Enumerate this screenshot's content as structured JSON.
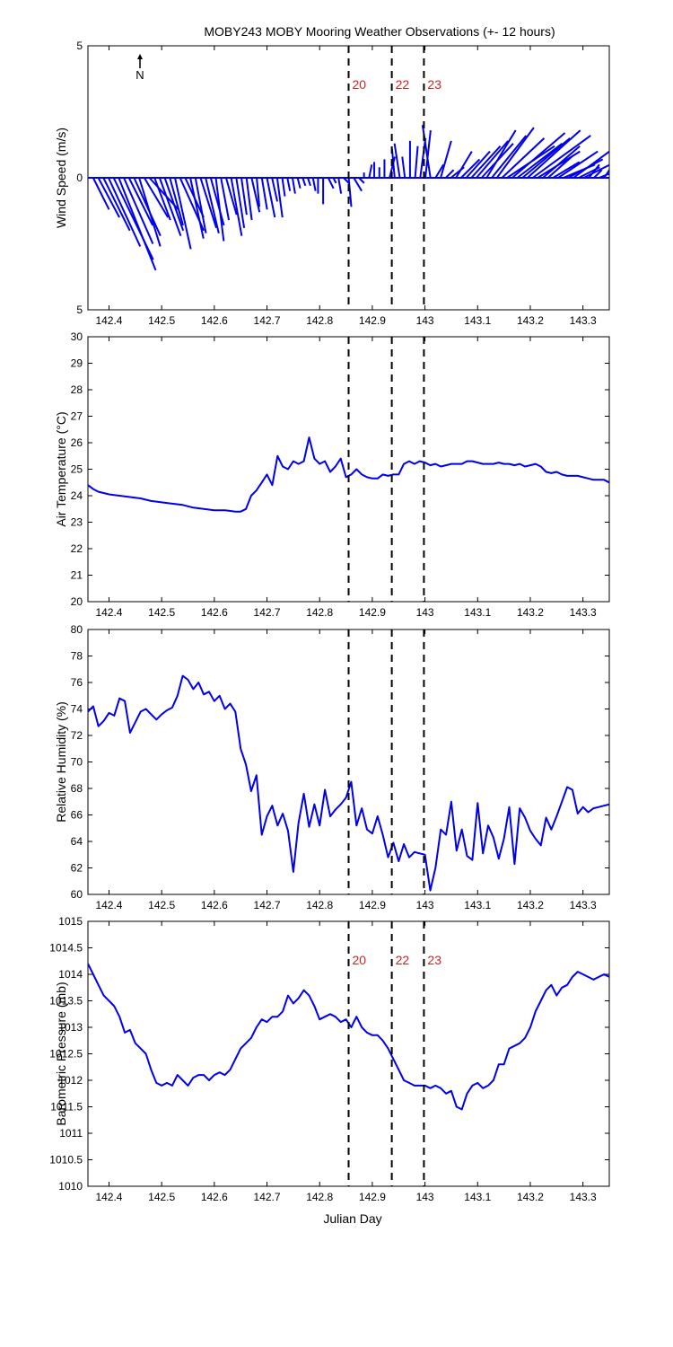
{
  "title": "MOBY243 MOBY Mooring Weather Observations (+- 12 hours)",
  "xlabel": "Julian Day",
  "north_label": "N",
  "colors": {
    "series": "#0000ee",
    "marker_text": "#cc2222",
    "axes": "#000000"
  },
  "markers": [
    {
      "label": "20",
      "x": 142.855
    },
    {
      "label": "22",
      "x": 142.937
    },
    {
      "label": "23",
      "x": 142.998
    }
  ],
  "chart_data": [
    {
      "type": "wind_stick",
      "ylabel": "Wind Speed (m/s)",
      "xlim": [
        142.36,
        143.35
      ],
      "ylim": [
        -5,
        5
      ],
      "yticks": [
        -5,
        0,
        5
      ],
      "ytick_labels": [
        "5",
        "0",
        "5"
      ],
      "xticks": [
        "142.4",
        "142.5",
        "142.6",
        "142.7",
        "142.8",
        "142.9",
        "143",
        "143.1",
        "143.2",
        "143.3"
      ],
      "show_markers": true,
      "show_marker_labels": true,
      "u": [
        0.6,
        0.8,
        1.0,
        1.2,
        1.5,
        1.4,
        1.1,
        0.9,
        1.0,
        0.8,
        0.9,
        1.1,
        0.6,
        0.8,
        0.7,
        0.5,
        0.6,
        0.9,
        0.7,
        0.5,
        0.4,
        0.6,
        0.5,
        0.5,
        0.3,
        0.3,
        0.4,
        0.4,
        0.3,
        0.2,
        0.2,
        0.3,
        0.1,
        0.2,
        0.3,
        0.2,
        0.2,
        0.1,
        0.1,
        0.1,
        0.1,
        0.1,
        0.1,
        0.1,
        0.0,
        0.0,
        0.2,
        0.1,
        0.1,
        0.2,
        0.1,
        0.3,
        0.2,
        0.0,
        0.1,
        0.0,
        0.0,
        0.0,
        0.2,
        -0.1,
        -0.2,
        -0.1,
        0.0,
        0.1,
        0.2,
        0.2,
        -0.3,
        0.3,
        0.4,
        0.3,
        0.5,
        0.6,
        0.7,
        0.9,
        1.1,
        1.2,
        1.2,
        1.1,
        1.3,
        1.4,
        1.6,
        1.8,
        2.0,
        1.7,
        1.8,
        2.0,
        2.2,
        1.6,
        1.4,
        0.9,
        1.0,
        1.5,
        1.2,
        1.3,
        1.5,
        0.8,
        1.2,
        0.4,
        0.3,
        0.5,
        0.2
      ],
      "v": [
        -1.2,
        -1.5,
        -2.0,
        -2.6,
        -3.1,
        -3.5,
        -2.5,
        -1.8,
        -2.2,
        -2.6,
        -1.5,
        -1.2,
        -1.6,
        -2.2,
        -2.0,
        -1.8,
        -2.7,
        -2.0,
        -1.5,
        -2.3,
        -2.1,
        -1.9,
        -2.1,
        -1.8,
        -2.4,
        -1.6,
        -1.4,
        -2.2,
        -1.9,
        -1.4,
        -1.6,
        -1.3,
        -1.1,
        -1.2,
        -1.5,
        -0.9,
        -1.5,
        -0.7,
        -0.5,
        -0.6,
        -0.4,
        -0.3,
        -0.3,
        -0.5,
        -0.6,
        -1.0,
        -0.4,
        -0.2,
        -0.6,
        -0.2,
        -1.1,
        -0.5,
        -0.2,
        0.2,
        0.5,
        0.6,
        0.4,
        0.7,
        0.8,
        1.1,
        1.3,
        0.8,
        1.4,
        1.2,
        1.5,
        1.8,
        2.0,
        0.5,
        1.4,
        0.3,
        0.4,
        1.0,
        0.7,
        1.0,
        1.2,
        1.4,
        1.3,
        1.8,
        1.6,
        1.9,
        1.5,
        1.2,
        1.7,
        1.3,
        1.5,
        1.8,
        1.6,
        1.0,
        1.2,
        0.8,
        0.6,
        1.0,
        0.5,
        0.7,
        1.1,
        0.4,
        0.6,
        0.5,
        0.3,
        0.2,
        0.3
      ]
    },
    {
      "type": "line",
      "ylabel": "Air Temperature (°C)",
      "xlim": [
        142.36,
        143.35
      ],
      "ylim": [
        20,
        30
      ],
      "yticks": [
        20,
        21,
        22,
        23,
        24,
        25,
        26,
        27,
        28,
        29,
        30
      ],
      "xticks": [
        "142.4",
        "142.5",
        "142.6",
        "142.7",
        "142.8",
        "142.9",
        "143",
        "143.1",
        "143.2",
        "143.3"
      ],
      "show_markers": true,
      "show_marker_labels": false,
      "series": [
        {
          "x": [
            142.36,
            142.37,
            142.38,
            142.4,
            142.42,
            142.44,
            142.46,
            142.48,
            142.5,
            142.52,
            142.54,
            142.56,
            142.58,
            142.6,
            142.62,
            142.64,
            142.65,
            142.66,
            142.67,
            142.68,
            142.69,
            142.7,
            142.71,
            142.72,
            142.73,
            142.74,
            142.75,
            142.76,
            142.77,
            142.78,
            142.79,
            142.8,
            142.81,
            142.82,
            142.83,
            142.84,
            142.85,
            142.86,
            142.87,
            142.88,
            142.89,
            142.9,
            142.91,
            142.92,
            142.93,
            142.94,
            142.95,
            142.96,
            142.97,
            142.98,
            142.99,
            143.0,
            143.01,
            143.02,
            143.03,
            143.04,
            143.05,
            143.06,
            143.07,
            143.08,
            143.09,
            143.1,
            143.11,
            143.12,
            143.13,
            143.14,
            143.15,
            143.16,
            143.17,
            143.18,
            143.19,
            143.2,
            143.21,
            143.22,
            143.23,
            143.24,
            143.25,
            143.26,
            143.27,
            143.28,
            143.29,
            143.3,
            143.31,
            143.32,
            143.33,
            143.34,
            143.35
          ],
          "y": [
            24.4,
            24.25,
            24.15,
            24.05,
            24.0,
            23.95,
            23.9,
            23.8,
            23.75,
            23.7,
            23.65,
            23.55,
            23.5,
            23.45,
            23.45,
            23.4,
            23.4,
            23.5,
            24.0,
            24.2,
            24.5,
            24.8,
            24.4,
            25.5,
            25.1,
            25.0,
            25.3,
            25.2,
            25.3,
            26.2,
            25.4,
            25.2,
            25.3,
            24.9,
            25.1,
            25.4,
            24.7,
            24.8,
            25.0,
            24.8,
            24.7,
            24.65,
            24.65,
            24.8,
            24.75,
            24.8,
            24.8,
            25.2,
            25.3,
            25.2,
            25.3,
            25.25,
            25.15,
            25.2,
            25.1,
            25.15,
            25.2,
            25.2,
            25.2,
            25.3,
            25.3,
            25.25,
            25.2,
            25.2,
            25.2,
            25.25,
            25.2,
            25.2,
            25.15,
            25.2,
            25.1,
            25.15,
            25.2,
            25.1,
            24.9,
            24.85,
            24.9,
            24.8,
            24.75,
            24.75,
            24.75,
            24.7,
            24.65,
            24.6,
            24.6,
            24.6,
            24.5
          ]
        }
      ]
    },
    {
      "type": "line",
      "ylabel": "Relative Humidity (%)",
      "xlim": [
        142.36,
        143.35
      ],
      "ylim": [
        60,
        80
      ],
      "yticks": [
        60,
        62,
        64,
        66,
        68,
        70,
        72,
        74,
        76,
        78,
        80
      ],
      "xticks": [
        "142.4",
        "142.5",
        "142.6",
        "142.7",
        "142.8",
        "142.9",
        "143",
        "143.1",
        "143.2",
        "143.3"
      ],
      "show_markers": true,
      "show_marker_labels": false,
      "series": [
        {
          "x": [
            142.36,
            142.37,
            142.38,
            142.39,
            142.4,
            142.41,
            142.42,
            142.43,
            142.44,
            142.45,
            142.46,
            142.47,
            142.48,
            142.49,
            142.5,
            142.51,
            142.52,
            142.53,
            142.54,
            142.55,
            142.56,
            142.57,
            142.58,
            142.59,
            142.6,
            142.61,
            142.62,
            142.63,
            142.64,
            142.65,
            142.66,
            142.67,
            142.68,
            142.69,
            142.7,
            142.71,
            142.72,
            142.73,
            142.74,
            142.75,
            142.76,
            142.77,
            142.78,
            142.79,
            142.8,
            142.81,
            142.82,
            142.83,
            142.84,
            142.85,
            142.86,
            142.87,
            142.88,
            142.89,
            142.9,
            142.91,
            142.92,
            142.93,
            142.94,
            142.95,
            142.96,
            142.97,
            142.98,
            142.99,
            143.0,
            143.01,
            143.02,
            143.03,
            143.04,
            143.05,
            143.06,
            143.07,
            143.08,
            143.09,
            143.1,
            143.11,
            143.12,
            143.13,
            143.14,
            143.15,
            143.16,
            143.17,
            143.18,
            143.19,
            143.2,
            143.21,
            143.22,
            143.23,
            143.24,
            143.25,
            143.26,
            143.27,
            143.28,
            143.29,
            143.3,
            143.31,
            143.32,
            143.33,
            143.34,
            143.35
          ],
          "y": [
            73.8,
            74.2,
            72.7,
            73.1,
            73.7,
            73.5,
            74.8,
            74.6,
            72.2,
            73.0,
            73.8,
            74.0,
            73.6,
            73.2,
            73.6,
            73.9,
            74.1,
            75.0,
            76.5,
            76.2,
            75.5,
            76.0,
            75.1,
            75.3,
            74.6,
            75.0,
            74.0,
            74.4,
            73.8,
            71.0,
            69.8,
            67.8,
            69.0,
            64.5,
            65.9,
            66.7,
            65.2,
            66.1,
            64.8,
            61.7,
            65.4,
            67.6,
            65.1,
            66.8,
            65.2,
            67.9,
            65.9,
            66.4,
            66.8,
            67.3,
            68.5,
            65.2,
            66.5,
            64.9,
            64.6,
            65.9,
            64.5,
            62.8,
            63.9,
            62.5,
            63.8,
            62.8,
            63.2,
            63.1,
            63.0,
            60.3,
            62.0,
            64.9,
            64.5,
            67.0,
            63.3,
            64.9,
            62.9,
            62.6,
            66.9,
            63.1,
            65.2,
            64.3,
            62.7,
            64.2,
            66.6,
            62.3,
            66.5,
            65.8,
            64.8,
            64.2,
            63.7,
            65.8,
            64.9,
            65.9,
            67.0,
            68.1,
            67.9,
            66.1,
            66.6,
            66.2,
            66.5,
            66.6,
            66.7,
            66.8
          ],
          "x_trim": 143.35
        }
      ]
    },
    {
      "type": "line",
      "ylabel": "Barometric Pressure (mb)",
      "xlim": [
        142.36,
        143.35
      ],
      "ylim": [
        1010,
        1015
      ],
      "yticks": [
        1010,
        1010.5,
        1011,
        1011.5,
        1012,
        1012.5,
        1013,
        1013.5,
        1014,
        1014.5,
        1015
      ],
      "xticks": [
        "142.4",
        "142.5",
        "142.6",
        "142.7",
        "142.8",
        "142.9",
        "143",
        "143.1",
        "143.2",
        "143.3"
      ],
      "show_markers": true,
      "show_marker_labels": true,
      "series": [
        {
          "x": [
            142.36,
            142.37,
            142.38,
            142.39,
            142.4,
            142.41,
            142.42,
            142.43,
            142.44,
            142.45,
            142.46,
            142.47,
            142.48,
            142.49,
            142.5,
            142.51,
            142.52,
            142.53,
            142.54,
            142.55,
            142.56,
            142.57,
            142.58,
            142.59,
            142.6,
            142.61,
            142.62,
            142.63,
            142.64,
            142.65,
            142.66,
            142.67,
            142.68,
            142.69,
            142.7,
            142.71,
            142.72,
            142.73,
            142.74,
            142.75,
            142.76,
            142.77,
            142.78,
            142.79,
            142.8,
            142.81,
            142.82,
            142.83,
            142.84,
            142.85,
            142.86,
            142.87,
            142.88,
            142.89,
            142.9,
            142.91,
            142.92,
            142.93,
            142.94,
            142.95,
            142.96,
            142.97,
            142.98,
            142.99,
            143.0,
            143.01,
            143.02,
            143.03,
            143.04,
            143.05,
            143.06,
            143.07,
            143.08,
            143.09,
            143.1,
            143.11,
            143.12,
            143.13,
            143.14,
            143.15,
            143.16,
            143.17,
            143.18,
            143.19,
            143.2,
            143.21,
            143.22,
            143.23,
            143.24,
            143.25,
            143.26,
            143.27,
            143.28,
            143.29,
            143.3,
            143.31,
            143.32,
            143.33,
            143.34,
            143.35
          ],
          "y": [
            1014.2,
            1014.0,
            1013.8,
            1013.6,
            1013.5,
            1013.4,
            1013.2,
            1012.9,
            1012.95,
            1012.7,
            1012.6,
            1012.5,
            1012.2,
            1011.95,
            1011.9,
            1011.95,
            1011.9,
            1012.1,
            1012.0,
            1011.9,
            1012.05,
            1012.1,
            1012.1,
            1012.0,
            1012.1,
            1012.15,
            1012.1,
            1012.2,
            1012.4,
            1012.6,
            1012.7,
            1012.8,
            1013.0,
            1013.15,
            1013.1,
            1013.2,
            1013.2,
            1013.3,
            1013.6,
            1013.45,
            1013.55,
            1013.7,
            1013.6,
            1013.4,
            1013.15,
            1013.2,
            1013.25,
            1013.2,
            1013.1,
            1013.15,
            1013.0,
            1013.2,
            1013.0,
            1012.9,
            1012.85,
            1012.85,
            1012.75,
            1012.6,
            1012.4,
            1012.2,
            1012.0,
            1011.95,
            1011.9,
            1011.9,
            1011.9,
            1011.85,
            1011.9,
            1011.85,
            1011.75,
            1011.8,
            1011.5,
            1011.45,
            1011.75,
            1011.9,
            1011.95,
            1011.85,
            1011.9,
            1012.0,
            1012.3,
            1012.3,
            1012.6,
            1012.65,
            1012.7,
            1012.8,
            1013.0,
            1013.3,
            1013.5,
            1013.7,
            1013.8,
            1013.6,
            1013.75,
            1013.8,
            1013.95,
            1014.05,
            1014.0,
            1013.95,
            1013.9,
            1013.95,
            1014.0,
            1013.95
          ]
        }
      ]
    }
  ]
}
